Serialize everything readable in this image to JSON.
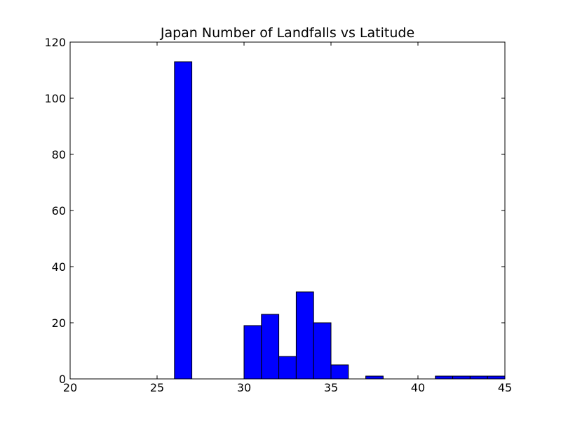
{
  "chart_data": {
    "type": "bar",
    "title": "Japan Number of Landfalls vs Latitude",
    "xlabel": "",
    "ylabel": "",
    "xlim": [
      20,
      45
    ],
    "ylim": [
      0,
      120
    ],
    "x_ticks": [
      20,
      25,
      30,
      35,
      40,
      45
    ],
    "y_ticks": [
      0,
      20,
      40,
      60,
      80,
      100,
      120
    ],
    "grid": false,
    "bar_color": "#0000ff",
    "bins": [
      {
        "x0": 24,
        "x1": 25,
        "value": 0
      },
      {
        "x0": 25,
        "x1": 26,
        "value": 0
      },
      {
        "x0": 26,
        "x1": 27,
        "value": 113
      },
      {
        "x0": 27,
        "x1": 28,
        "value": 0
      },
      {
        "x0": 28,
        "x1": 29,
        "value": 0
      },
      {
        "x0": 29,
        "x1": 30,
        "value": 0
      },
      {
        "x0": 30,
        "x1": 31,
        "value": 19
      },
      {
        "x0": 31,
        "x1": 32,
        "value": 23
      },
      {
        "x0": 32,
        "x1": 33,
        "value": 8
      },
      {
        "x0": 33,
        "x1": 34,
        "value": 31
      },
      {
        "x0": 34,
        "x1": 35,
        "value": 20
      },
      {
        "x0": 35,
        "x1": 36,
        "value": 5
      },
      {
        "x0": 36,
        "x1": 37,
        "value": 0
      },
      {
        "x0": 37,
        "x1": 38,
        "value": 1
      },
      {
        "x0": 38,
        "x1": 39,
        "value": 0
      },
      {
        "x0": 39,
        "x1": 40,
        "value": 0
      },
      {
        "x0": 40,
        "x1": 41,
        "value": 0
      },
      {
        "x0": 41,
        "x1": 42,
        "value": 1
      },
      {
        "x0": 42,
        "x1": 43,
        "value": 1
      },
      {
        "x0": 43,
        "x1": 44,
        "value": 1
      },
      {
        "x0": 44,
        "x1": 45,
        "value": 1
      }
    ]
  }
}
